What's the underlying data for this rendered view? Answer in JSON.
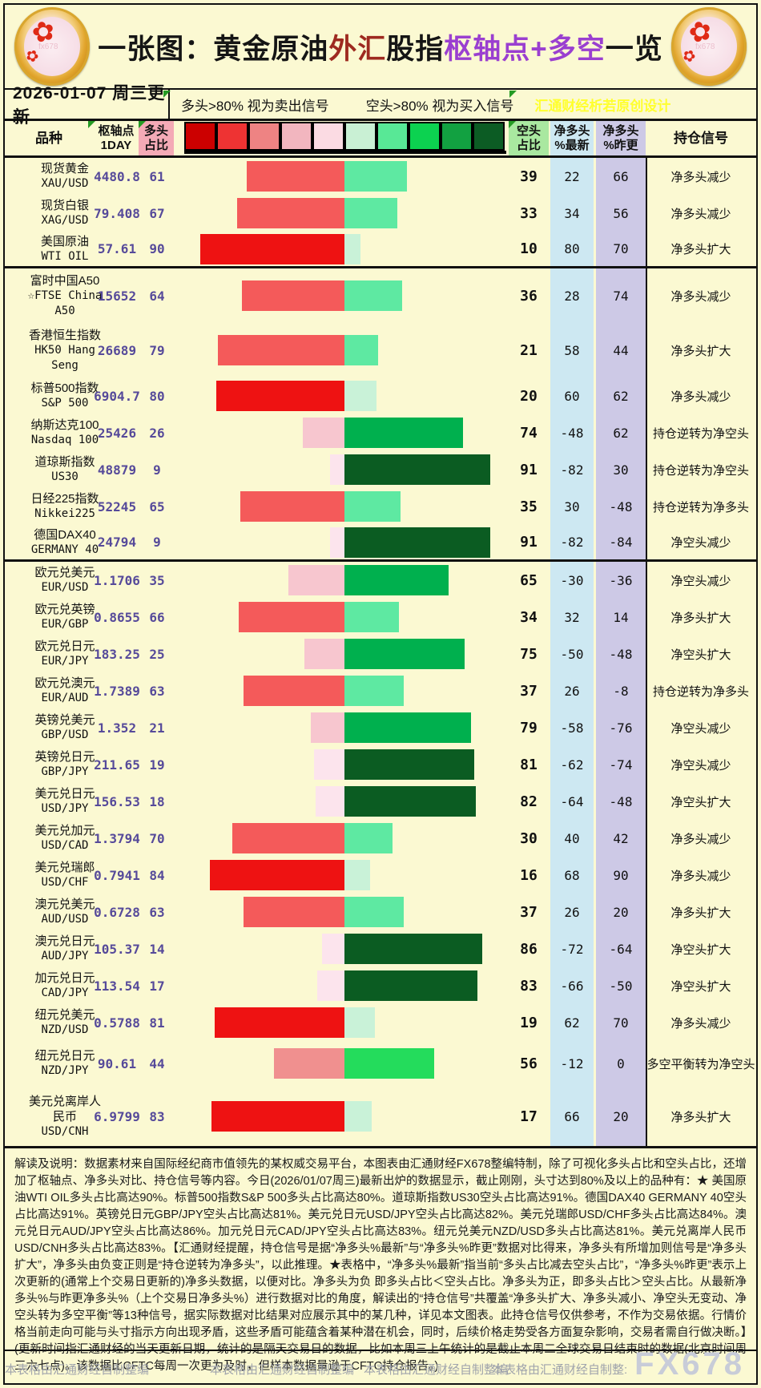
{
  "title": {
    "segments": [
      {
        "text": "一张图：黄金原油",
        "color": "#151515"
      },
      {
        "text": "外汇",
        "color": "#9e2a20"
      },
      {
        "text": "股指",
        "color": "#151515"
      },
      {
        "text": "枢轴点+多空",
        "color": "#9a3fd0"
      },
      {
        "text": "一览",
        "color": "#151515"
      }
    ],
    "logo_flower_icon": "✿",
    "logo_watermark": "fx678"
  },
  "subheader": {
    "date": "2026-01-07 周三更新",
    "long_rule": "多头>80% 视为卖出信号",
    "short_rule": "空头>80% 视为买入信号",
    "watermark": "汇通财经析若原创设计"
  },
  "table": {
    "headers": {
      "product": "品种",
      "pivot_l1": "枢轴点",
      "pivot_l2": "1DAY",
      "long_l1": "多头",
      "long_l2": "占比",
      "short_l1": "空头",
      "short_l2": "占比",
      "netl_l1": "净多头",
      "netl_l2": "%最新",
      "netp_l1": "净多头",
      "netp_l2": "%昨更",
      "signal": "持仓信号"
    },
    "legend_colors": [
      "#cc0000",
      "#ee3333",
      "#ee8383",
      "#f2b6bf",
      "#fbdbe3",
      "#c9f0d4",
      "#58e896",
      "#0cd250",
      "#12a141",
      "#0c5c24"
    ],
    "bar_scale": {
      "red": [
        {
          "min": 80,
          "color": "#ee1212"
        },
        {
          "min": 60,
          "color": "#f45a5a"
        },
        {
          "min": 40,
          "color": "#f0908f"
        },
        {
          "min": 21,
          "color": "#f7c6cf"
        },
        {
          "min": 0,
          "color": "#fce4ed"
        }
      ],
      "green": [
        {
          "min": 80,
          "color": "#0b5c22"
        },
        {
          "min": 60,
          "color": "#00b04e"
        },
        {
          "min": 40,
          "color": "#24dc5c"
        },
        {
          "min": 21,
          "color": "#5ee9a2"
        },
        {
          "min": 0,
          "color": "#c9f2d8"
        }
      ]
    },
    "rows": [
      {
        "lines": [
          "现货黄金",
          "XAU/USD"
        ],
        "pivot": "4480.8",
        "long": 61,
        "short": 39,
        "net_latest": "22",
        "net_prev": "66",
        "signal": "净多头减少"
      },
      {
        "lines": [
          "现货白银",
          "XAG/USD"
        ],
        "pivot": "79.408",
        "long": 67,
        "short": 33,
        "net_latest": "34",
        "net_prev": "56",
        "signal": "净多头减少"
      },
      {
        "lines": [
          "美国原油",
          "WTI OIL"
        ],
        "pivot": "57.61",
        "long": 90,
        "short": 10,
        "net_latest": "80",
        "net_prev": "70",
        "signal": "净多头扩大",
        "sep": true
      },
      {
        "lines": [
          "富时中国A50",
          "☆FTSE China",
          "A50"
        ],
        "pivot": "15652",
        "long": 64,
        "short": 36,
        "net_latest": "28",
        "net_prev": "74",
        "signal": "净多头减少"
      },
      {
        "lines": [
          "香港恒生指数",
          "HK50 Hang",
          "Seng"
        ],
        "pivot": "26689",
        "long": 79,
        "short": 21,
        "net_latest": "58",
        "net_prev": "44",
        "signal": "净多头扩大"
      },
      {
        "lines": [
          "标普500指数",
          "S&P 500"
        ],
        "pivot": "6904.7",
        "long": 80,
        "short": 20,
        "net_latest": "60",
        "net_prev": "62",
        "signal": "净多头减少"
      },
      {
        "lines": [
          "纳斯达克100",
          "Nasdaq 100"
        ],
        "pivot": "25426",
        "long": 26,
        "short": 74,
        "net_latest": "-48",
        "net_prev": "62",
        "signal": "持仓逆转为净空头"
      },
      {
        "lines": [
          "道琼斯指数",
          "US30"
        ],
        "pivot": "48879",
        "long": 9,
        "short": 91,
        "net_latest": "-82",
        "net_prev": "30",
        "signal": "持仓逆转为净空头"
      },
      {
        "lines": [
          "日经225指数",
          "Nikkei225"
        ],
        "pivot": "52245",
        "long": 65,
        "short": 35,
        "net_latest": "30",
        "net_prev": "-48",
        "signal": "持仓逆转为净多头"
      },
      {
        "lines": [
          "德国DAX40",
          "GERMANY 40"
        ],
        "pivot": "24794",
        "long": 9,
        "short": 91,
        "net_latest": "-82",
        "net_prev": "-84",
        "signal": "净空头减少",
        "sep": true
      },
      {
        "lines": [
          "欧元兑美元",
          "EUR/USD"
        ],
        "pivot": "1.1706",
        "long": 35,
        "short": 65,
        "net_latest": "-30",
        "net_prev": "-36",
        "signal": "净空头减少"
      },
      {
        "lines": [
          "欧元兑英镑",
          "EUR/GBP"
        ],
        "pivot": "0.8655",
        "long": 66,
        "short": 34,
        "net_latest": "32",
        "net_prev": "14",
        "signal": "净多头扩大"
      },
      {
        "lines": [
          "欧元兑日元",
          "EUR/JPY"
        ],
        "pivot": "183.25",
        "long": 25,
        "short": 75,
        "net_latest": "-50",
        "net_prev": "-48",
        "signal": "净空头扩大"
      },
      {
        "lines": [
          "欧元兑澳元",
          "EUR/AUD"
        ],
        "pivot": "1.7389",
        "long": 63,
        "short": 37,
        "net_latest": "26",
        "net_prev": "-8",
        "signal": "持仓逆转为净多头"
      },
      {
        "lines": [
          "英镑兑美元",
          "GBP/USD"
        ],
        "pivot": "1.352",
        "long": 21,
        "short": 79,
        "net_latest": "-58",
        "net_prev": "-76",
        "signal": "净空头减少"
      },
      {
        "lines": [
          "英镑兑日元",
          "GBP/JPY"
        ],
        "pivot": "211.65",
        "long": 19,
        "short": 81,
        "net_latest": "-62",
        "net_prev": "-74",
        "signal": "净空头减少"
      },
      {
        "lines": [
          "美元兑日元",
          "USD/JPY"
        ],
        "pivot": "156.53",
        "long": 18,
        "short": 82,
        "net_latest": "-64",
        "net_prev": "-48",
        "signal": "净空头扩大"
      },
      {
        "lines": [
          "美元兑加元",
          "USD/CAD"
        ],
        "pivot": "1.3794",
        "long": 70,
        "short": 30,
        "net_latest": "40",
        "net_prev": "42",
        "signal": "净多头减少"
      },
      {
        "lines": [
          "美元兑瑞郎",
          "USD/CHF"
        ],
        "pivot": "0.7941",
        "long": 84,
        "short": 16,
        "net_latest": "68",
        "net_prev": "90",
        "signal": "净多头减少"
      },
      {
        "lines": [
          "澳元兑美元",
          "AUD/USD"
        ],
        "pivot": "0.6728",
        "long": 63,
        "short": 37,
        "net_latest": "26",
        "net_prev": "20",
        "signal": "净多头扩大"
      },
      {
        "lines": [
          "澳元兑日元",
          "AUD/JPY"
        ],
        "pivot": "105.37",
        "long": 14,
        "short": 86,
        "net_latest": "-72",
        "net_prev": "-64",
        "signal": "净空头扩大"
      },
      {
        "lines": [
          "加元兑日元",
          "CAD/JPY"
        ],
        "pivot": "113.54",
        "long": 17,
        "short": 83,
        "net_latest": "-66",
        "net_prev": "-50",
        "signal": "净空头扩大"
      },
      {
        "lines": [
          "纽元兑美元",
          "NZD/USD"
        ],
        "pivot": "0.5788",
        "long": 81,
        "short": 19,
        "net_latest": "62",
        "net_prev": "70",
        "signal": "净多头减少"
      },
      {
        "lines": [
          "纽元兑日元",
          "NZD/JPY"
        ],
        "pivot": "90.61",
        "long": 44,
        "short": 56,
        "net_latest": "-12",
        "net_prev": "0",
        "signal": "多空平衡转为净空头"
      },
      {
        "lines": [
          "美元兑离岸人",
          "民币",
          "USD/CNH"
        ],
        "pivot": "6.9799",
        "long": 83,
        "short": 17,
        "net_latest": "66",
        "net_prev": "20",
        "signal": "净多头扩大"
      }
    ]
  },
  "chart_data": {
    "type": "bar",
    "title": "一张图：黄金原油外汇股指枢轴点+多空一览",
    "xlabel": "占比%",
    "ylabel": "品种",
    "xlim": [
      0,
      100
    ],
    "legend_position": "top",
    "annotations": [
      "多头>80% 视为卖出信号",
      "空头>80% 视为买入信号"
    ],
    "categories": [
      "XAU/USD",
      "XAG/USD",
      "WTI OIL",
      "FTSE China A50",
      "HK50 Hang Seng",
      "S&P 500",
      "Nasdaq 100",
      "US30",
      "Nikkei225",
      "GERMANY 40",
      "EUR/USD",
      "EUR/GBP",
      "EUR/JPY",
      "EUR/AUD",
      "GBP/USD",
      "GBP/JPY",
      "USD/JPY",
      "USD/CAD",
      "USD/CHF",
      "AUD/USD",
      "AUD/JPY",
      "CAD/JPY",
      "NZD/USD",
      "NZD/JPY",
      "USD/CNH"
    ],
    "series": [
      {
        "name": "枢轴点1DAY",
        "values": [
          4480.8,
          79.408,
          57.61,
          15652,
          26689,
          6904.7,
          25426,
          48879,
          52245,
          24794,
          1.1706,
          0.8655,
          183.25,
          1.7389,
          1.352,
          211.65,
          156.53,
          1.3794,
          0.7941,
          0.6728,
          105.37,
          113.54,
          0.5788,
          90.61,
          6.9799
        ]
      },
      {
        "name": "多头占比",
        "values": [
          61,
          67,
          90,
          64,
          79,
          80,
          26,
          9,
          65,
          9,
          35,
          66,
          25,
          63,
          21,
          19,
          18,
          70,
          84,
          63,
          14,
          17,
          81,
          44,
          83
        ]
      },
      {
        "name": "空头占比",
        "values": [
          39,
          33,
          10,
          36,
          21,
          20,
          74,
          91,
          35,
          91,
          65,
          34,
          75,
          37,
          79,
          81,
          82,
          30,
          16,
          37,
          86,
          83,
          19,
          56,
          17
        ]
      },
      {
        "name": "净多头%最新",
        "values": [
          22,
          34,
          80,
          28,
          58,
          60,
          -48,
          -82,
          30,
          -82,
          -30,
          32,
          -50,
          26,
          -58,
          -62,
          -64,
          40,
          68,
          26,
          -72,
          -66,
          62,
          -12,
          66
        ]
      },
      {
        "name": "净多头%昨更",
        "values": [
          66,
          56,
          70,
          74,
          44,
          62,
          62,
          30,
          -48,
          -84,
          -36,
          14,
          -48,
          -8,
          -76,
          -74,
          -48,
          42,
          90,
          20,
          -64,
          -50,
          70,
          0,
          20
        ]
      }
    ],
    "signals": [
      "净多头减少",
      "净多头减少",
      "净多头扩大",
      "净多头减少",
      "净多头扩大",
      "净多头减少",
      "持仓逆转为净空头",
      "持仓逆转为净空头",
      "持仓逆转为净多头",
      "净空头减少",
      "净空头减少",
      "净多头扩大",
      "净空头扩大",
      "持仓逆转为净多头",
      "净空头减少",
      "净空头减少",
      "净空头扩大",
      "净多头减少",
      "净多头减少",
      "净多头扩大",
      "净空头扩大",
      "净空头扩大",
      "净多头减少",
      "多空平衡转为净空头",
      "净多头扩大"
    ]
  },
  "footer": {
    "disclaimer": "解读及说明：数据素材来自国际经纪商市值领先的某权威交易平台，本图表由汇通财经FX678整编特制，除了可视化多头占比和空头占比，还增加了枢轴点、净多头对比、持仓信号等内容。今日(2026/01/07周三)最新出炉的数据显示，截止刚刚，头寸达到80%及以上的品种有：★ 美国原油WTI OIL多头占比高达90%。标普500指数S&P 500多头占比高达80%。道琼斯指数US30空头占比高达91%。德国DAX40 GERMANY 40空头占比高达91%。英镑兑日元GBP/JPY空头占比高达81%。美元兑日元USD/JPY空头占比高达82%。美元兑瑞郎USD/CHF多头占比高达84%。澳元兑日元AUD/JPY空头占比高达86%。加元兑日元CAD/JPY空头占比高达83%。纽元兑美元NZD/USD多头占比高达81%。美元兑离岸人民币USD/CNH多头占比高达83%。【汇通财经提醒，持仓信号是据“净多头%最新”与“净多头%昨更”数据对比得来，净多头有所增加则信号是“净多头扩大”，净多头由负变正则是“持仓逆转为净多头”，以此推理。★表格中，“净多头%最新”指当前“多头占比减去空头占比”，“净多头%昨更”表示上次更新的(通常上个交易日更新的)净多头数据，以便对比。净多头为负 即多头占比＜空头占比。净多头为正，即多头占比＞空头占比。从最新净多头%与昨更净多头%（上个交易日净多头%）进行数据对比的角度，解读出的“持仓信号”共覆盖“净多头扩大、净多头减小、净空头无变动、净空头转为多空平衡”等13种信号，据实际数据对比结果对应展示其中的某几种，详见本文图表。此持仓信号仅供参考，不作为交易依据。行情价格当前走向可能与头寸指示方向出现矛盾，这些矛盾可能蕴含着某种潜在机会，同时，后续价格走势受各方面复杂影响，交易者需自行做决断。】(更新时间指汇通财经的当天更新日期，统计的是隔天交易日的数据，比如本周三上午统计的是截止本周二全球交易日结束时的数据(北京时间周三六七点)。该数据比CFTC每周一次更为及时，但样本数据量逊于CFTC持仓报告。)",
    "credits": [
      "本表格由汇通财经自制整编",
      "本表格由汇通财经自制整编",
      "本表格由汇通财经自制整:",
      "本表格由汇通财经自制整编"
    ],
    "watermark": "FX678"
  }
}
